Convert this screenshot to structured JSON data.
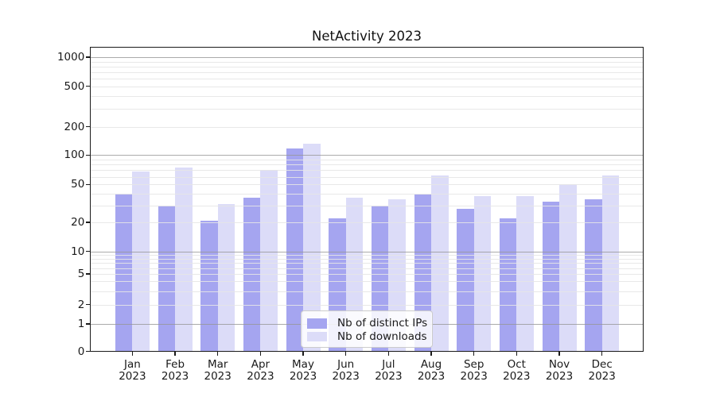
{
  "chart_data": {
    "type": "bar",
    "title": "NetActivity 2023",
    "categories": [
      "Jan",
      "Feb",
      "Mar",
      "Apr",
      "May",
      "Jun",
      "Jul",
      "Aug",
      "Sep",
      "Oct",
      "Nov",
      "Dec"
    ],
    "year": "2023",
    "series": [
      {
        "name": "Nb of distinct IPs",
        "color": "#a5a5f0",
        "values": [
          40,
          30,
          21,
          36,
          117,
          22,
          30,
          39,
          28,
          22,
          33,
          35
        ]
      },
      {
        "name": "Nb of downloads",
        "color": "#dcdcf8",
        "values": [
          68,
          74,
          31,
          70,
          131,
          36,
          35,
          62,
          38,
          38,
          50,
          62
        ]
      }
    ],
    "y_ticks": [
      0,
      1,
      2,
      5,
      10,
      20,
      50,
      100,
      200,
      500,
      1000
    ],
    "y_scale": "log-like",
    "grid": true,
    "legend_position": "lower center"
  }
}
